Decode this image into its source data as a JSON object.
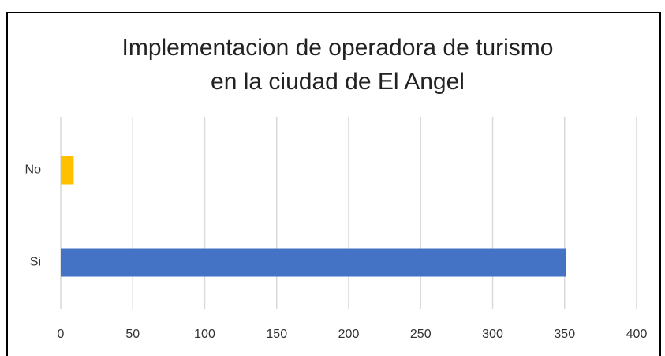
{
  "chart_data": {
    "type": "barh",
    "title": [
      "Implementacion de operadora de turismo",
      "en la ciudad de El Angel"
    ],
    "categories": [
      "No",
      "Si"
    ],
    "values": [
      9,
      351
    ],
    "colors": [
      "#ffc000",
      "#4472c4"
    ],
    "xlim": [
      0,
      400
    ],
    "xticks": [
      0,
      50,
      100,
      150,
      200,
      250,
      300,
      350,
      400
    ],
    "grid": true
  }
}
